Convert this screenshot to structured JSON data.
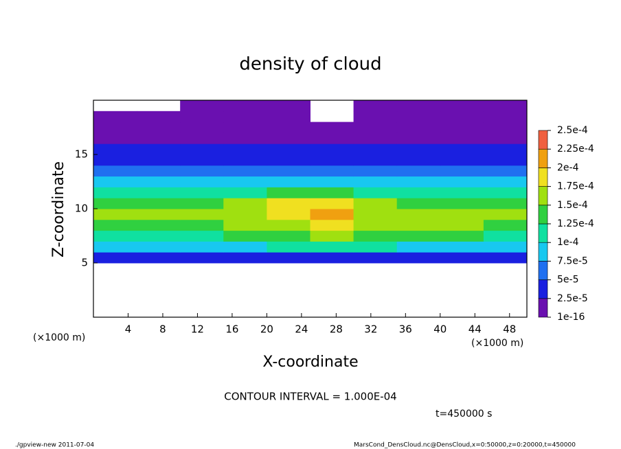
{
  "chart_data": {
    "type": "heatmap",
    "title": "density of cloud",
    "x_label": "X-coordinate",
    "y_label": "Z-coordinate",
    "x_unit_label": "(×1000 m)",
    "y_unit_label": "(×1000 m)",
    "contour_note": "CONTOUR INTERVAL = 1.000E-04",
    "time_note": "t=450000 s",
    "footer_left": "./gpview-new  2011-07-04",
    "footer_right": "MarsCond_DensCloud.nc@DensCloud,x=0:50000,z=0:20000,t=450000",
    "xlim": [
      0,
      50
    ],
    "ylim": [
      0,
      20
    ],
    "xticks": [
      4,
      8,
      12,
      16,
      20,
      24,
      28,
      32,
      36,
      40,
      44,
      48
    ],
    "yticks": [
      5,
      10,
      15
    ],
    "x": [
      2.5,
      7.5,
      12.5,
      17.5,
      22.5,
      27.5,
      32.5,
      37.5,
      42.5,
      47.5
    ],
    "y": [
      0.5,
      1.5,
      2.5,
      3.5,
      4.5,
      5.5,
      6.5,
      7.5,
      8.5,
      9.5,
      10.5,
      11.5,
      12.5,
      13.5,
      14.5,
      15.5,
      16.5,
      17.5,
      18.5,
      19.5
    ],
    "values": [
      [
        null,
        null,
        null,
        null,
        null,
        null,
        null,
        null,
        null,
        null
      ],
      [
        null,
        null,
        null,
        null,
        null,
        null,
        null,
        null,
        null,
        null
      ],
      [
        null,
        null,
        null,
        null,
        null,
        null,
        null,
        null,
        null,
        null
      ],
      [
        null,
        null,
        null,
        null,
        null,
        null,
        null,
        null,
        null,
        null
      ],
      [
        null,
        null,
        null,
        null,
        null,
        null,
        null,
        null,
        null,
        null
      ],
      [
        3e-05,
        3e-05,
        3e-05,
        3e-05,
        3e-05,
        3e-05,
        3e-05,
        3e-05,
        3e-05,
        3e-05
      ],
      [
        9e-05,
        9e-05,
        9e-05,
        9e-05,
        0.0001,
        0.0001,
        0.0001,
        9e-05,
        9e-05,
        9e-05
      ],
      [
        0.00012,
        0.00012,
        0.00012,
        0.00013,
        0.00014,
        0.00015,
        0.00014,
        0.00013,
        0.00013,
        0.00012
      ],
      [
        0.00014,
        0.00014,
        0.00014,
        0.00015,
        0.00017,
        0.00018,
        0.00016,
        0.00015,
        0.00016,
        0.00014
      ],
      [
        0.00015,
        0.00015,
        0.00015,
        0.00016,
        0.00019,
        0.0002,
        0.00017,
        0.00015,
        0.00015,
        0.00015
      ],
      [
        0.00013,
        0.00014,
        0.00014,
        0.00015,
        0.00018,
        0.00019,
        0.00016,
        0.00014,
        0.00014,
        0.00013
      ],
      [
        0.00011,
        0.00011,
        0.00011,
        0.00012,
        0.00013,
        0.00013,
        0.00012,
        0.00011,
        0.00011,
        0.00011
      ],
      [
        8e-05,
        8e-05,
        8e-05,
        8e-05,
        9e-05,
        9e-05,
        9e-05,
        8e-05,
        8e-05,
        8e-05
      ],
      [
        6e-05,
        6e-05,
        6e-05,
        6e-05,
        6e-05,
        6e-05,
        6e-05,
        6e-05,
        6e-05,
        6e-05
      ],
      [
        4.5e-05,
        4.5e-05,
        4.5e-05,
        4.5e-05,
        4.5e-05,
        4.5e-05,
        4.5e-05,
        4.5e-05,
        4.5e-05,
        4.5e-05
      ],
      [
        3e-05,
        3e-05,
        3e-05,
        3e-05,
        3e-05,
        3e-05,
        3e-05,
        3e-05,
        3e-05,
        3e-05
      ],
      [
        2e-05,
        2e-05,
        2e-05,
        2e-05,
        2e-05,
        2e-05,
        2e-05,
        2e-05,
        2e-05,
        2e-05
      ],
      [
        8e-06,
        8e-06,
        8e-06,
        8e-06,
        8e-06,
        8e-06,
        8e-06,
        8e-06,
        8e-06,
        8e-06
      ],
      [
        2e-06,
        2e-06,
        2e-06,
        2e-06,
        2e-06,
        null,
        2e-06,
        2e-06,
        2e-06,
        2e-06
      ],
      [
        null,
        null,
        1e-06,
        1e-06,
        1e-06,
        null,
        1e-06,
        1e-06,
        1e-06,
        1e-06
      ]
    ],
    "clim": [
      0,
      0.00025
    ],
    "colorbar_ticks": [
      {
        "value": 1e-16,
        "label": "1e-16"
      },
      {
        "value": 2.5e-05,
        "label": "2.5e-5"
      },
      {
        "value": 5e-05,
        "label": "5e-5"
      },
      {
        "value": 7.5e-05,
        "label": "7.5e-5"
      },
      {
        "value": 0.0001,
        "label": "1e-4"
      },
      {
        "value": 0.000125,
        "label": "1.25e-4"
      },
      {
        "value": 0.00015,
        "label": "1.5e-4"
      },
      {
        "value": 0.000175,
        "label": "1.75e-4"
      },
      {
        "value": 0.0002,
        "label": "2e-4"
      },
      {
        "value": 0.000225,
        "label": "2.25e-4"
      },
      {
        "value": 0.00025,
        "label": "2.5e-4"
      }
    ],
    "colors": [
      "#6a10b0",
      "#1a20e0",
      "#2070f0",
      "#18c8f0",
      "#10e0a0",
      "#30d040",
      "#a0e010",
      "#f0e020",
      "#f0a010",
      "#f06040"
    ]
  }
}
